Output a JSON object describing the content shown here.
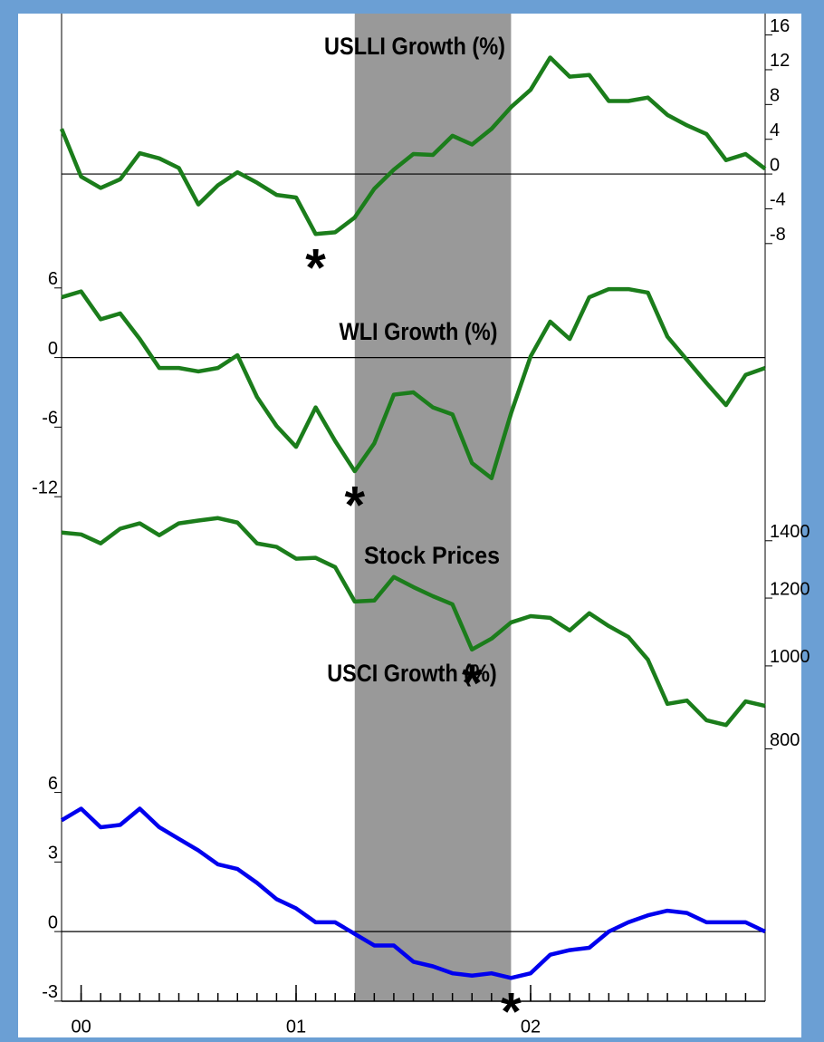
{
  "x_axis": {
    "x": [
      0,
      1,
      2,
      3,
      4,
      5,
      6,
      7,
      8,
      9,
      10,
      11,
      12,
      13,
      14,
      15,
      16,
      17,
      18,
      19,
      20,
      21,
      22,
      23,
      24,
      25,
      26,
      27,
      28,
      29,
      30,
      31,
      32,
      33,
      34,
      35,
      36
    ],
    "xlim": [
      0,
      36
    ],
    "xticks": [
      {
        "value": 1,
        "label": "00"
      },
      {
        "value": 12,
        "label": "01"
      },
      {
        "value": 24,
        "label": "02"
      }
    ],
    "recession": [
      15,
      23
    ]
  },
  "chart_data": [
    {
      "type": "line",
      "title": "USLLI Growth (%)",
      "color": "#1b7d1b",
      "axis": "right",
      "zero_line": true,
      "values": [
        5.2,
        -0.3,
        -1.6,
        -0.6,
        2.4,
        1.8,
        0.7,
        -3.5,
        -1.3,
        0.2,
        -1.0,
        -2.4,
        -2.7,
        -6.9,
        -6.7,
        -5.0,
        -1.7,
        0.5,
        2.3,
        2.2,
        4.4,
        3.4,
        5.2,
        7.7,
        9.7,
        13.4,
        11.2,
        11.4,
        8.4,
        8.4,
        8.8,
        6.8,
        5.6,
        4.6,
        1.6,
        2.3,
        0.6
      ],
      "ylim": [
        -10,
        17
      ],
      "yticks": [
        16,
        12,
        8,
        4,
        0,
        -4,
        -8
      ],
      "annotation": {
        "text": "*",
        "x": 13
      }
    },
    {
      "type": "line",
      "title": "WLI Growth (%)",
      "color": "#1b7d1b",
      "axis": "left",
      "zero_line": true,
      "values": [
        5.2,
        5.7,
        3.3,
        3.8,
        1.6,
        -0.9,
        -0.9,
        -1.2,
        -0.9,
        0.2,
        -3.4,
        -5.9,
        -7.7,
        -4.3,
        -7.2,
        -9.8,
        -7.4,
        -3.2,
        -3.0,
        -4.3,
        -4.9,
        -9.1,
        -10.4,
        -4.8,
        0.1,
        3.1,
        1.6,
        5.2,
        5.9,
        5.9,
        5.6,
        1.8,
        -0.2,
        -2.2,
        -4.1,
        -1.5,
        -0.9
      ],
      "ylim": [
        -13,
        7
      ],
      "yticks": [
        6,
        0,
        -6,
        -12
      ],
      "annotation": {
        "text": "*",
        "x": 15
      }
    },
    {
      "type": "line",
      "title": "Stock Prices",
      "color": "#1b7d1b",
      "axis": "right",
      "log": true,
      "zero_line": false,
      "values": [
        1431,
        1424,
        1390,
        1446,
        1467,
        1421,
        1467,
        1478,
        1488,
        1470,
        1390,
        1377,
        1334,
        1337,
        1304,
        1189,
        1192,
        1270,
        1236,
        1206,
        1180,
        1045,
        1076,
        1124,
        1143,
        1138,
        1100,
        1152,
        1113,
        1081,
        1017,
        903,
        911,
        864,
        853,
        909,
        898
      ],
      "ylim": [
        750,
        1550
      ],
      "yticks": [
        1400,
        1200,
        1000,
        800
      ],
      "annotation": {
        "text": "*",
        "x": 21
      }
    },
    {
      "type": "line",
      "title": "USCI Growth (%)",
      "color": "#0000ee",
      "axis": "left",
      "zero_line": true,
      "values": [
        4.8,
        5.3,
        4.5,
        4.6,
        5.3,
        4.5,
        4.0,
        3.5,
        2.9,
        2.7,
        2.1,
        1.4,
        1.0,
        0.4,
        0.4,
        -0.1,
        -0.6,
        -0.6,
        -1.3,
        -1.5,
        -1.8,
        -1.9,
        -1.8,
        -2.0,
        -1.8,
        -1.0,
        -0.8,
        -0.7,
        0.0,
        0.4,
        0.7,
        0.9,
        0.8,
        0.4,
        0.4,
        0.4,
        0.0
      ],
      "ylim": [
        -3.2,
        7
      ],
      "yticks": [
        6,
        3,
        0,
        -3
      ],
      "annotation": {
        "text": "*",
        "x": 23
      }
    }
  ]
}
